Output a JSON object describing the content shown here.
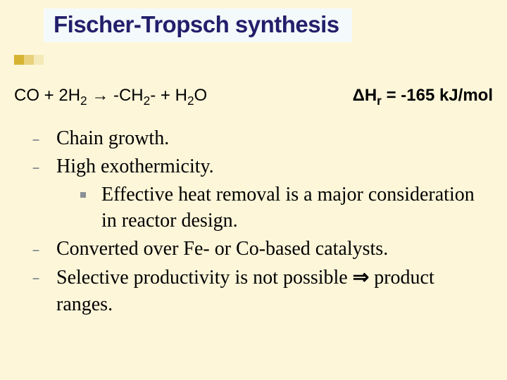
{
  "title": "Fischer-Tropsch synthesis",
  "accent_colors": [
    "#d6b432",
    "#e8d17a",
    "#f4e9b8"
  ],
  "reaction": {
    "left_html": "CO + 2H<sub>2</sub> <span class='arrow'>&#8594;</span> -CH<sub>2</sub>- + H<sub>2</sub>O",
    "right_html": "&#916;H<sub>r</sub> = -165 kJ/mol"
  },
  "bullets": [
    {
      "text": "Chain growth."
    },
    {
      "text": "High exothermicity.",
      "sub": [
        {
          "text": "Effective heat removal is a major consideration in reactor design."
        }
      ]
    },
    {
      "text": "Converted over Fe- or Co-based catalysts."
    },
    {
      "html": "Selective productivity is not possible <span class='imply'>&#8658;</span> product ranges."
    }
  ]
}
